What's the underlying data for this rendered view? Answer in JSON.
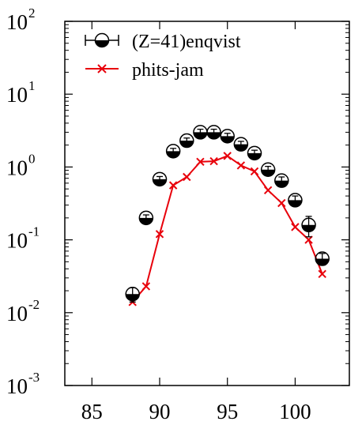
{
  "chart_data": {
    "type": "scatter",
    "x_ticks": [
      85,
      90,
      95,
      100
    ],
    "xlim": [
      83,
      104
    ],
    "y_scale": "log",
    "ylim": [
      0.001,
      100
    ],
    "y_ticks": [
      {
        "value": 100,
        "base": "10",
        "exp": "2"
      },
      {
        "value": 10,
        "base": "10",
        "exp": "1"
      },
      {
        "value": 1,
        "base": "10",
        "exp": "0"
      },
      {
        "value": 0.1,
        "base": "10",
        "exp": "-1"
      },
      {
        "value": 0.01,
        "base": "10",
        "exp": "-2"
      },
      {
        "value": 0.001,
        "base": "10",
        "exp": "-3"
      }
    ],
    "legend_position": "top-left",
    "series": [
      {
        "name": "(Z=41)enqvist",
        "style": "half-filled-circle-with-errorbars",
        "color": "#000000",
        "x": [
          88,
          89,
          90,
          91,
          92,
          93,
          94,
          95,
          96,
          97,
          98,
          99,
          100,
          101,
          102
        ],
        "y": [
          0.018,
          0.2,
          0.68,
          1.65,
          2.3,
          3.0,
          3.0,
          2.65,
          2.05,
          1.55,
          0.92,
          0.65,
          0.35,
          0.16,
          0.055
        ],
        "err": [
          0.004,
          0.02,
          0.06,
          0.15,
          0.2,
          0.3,
          0.3,
          0.25,
          0.2,
          0.15,
          0.1,
          0.08,
          0.05,
          0.05,
          0.01
        ]
      },
      {
        "name": "phits-jam",
        "style": "line-with-x-markers",
        "color": "#e8000b",
        "x": [
          88,
          89,
          90,
          91,
          92,
          93,
          94,
          95,
          96,
          97,
          98,
          99,
          100,
          101,
          102
        ],
        "y": [
          0.014,
          0.023,
          0.12,
          0.56,
          0.73,
          1.18,
          1.2,
          1.42,
          1.05,
          0.87,
          0.48,
          0.32,
          0.15,
          0.1,
          0.034
        ]
      }
    ]
  }
}
